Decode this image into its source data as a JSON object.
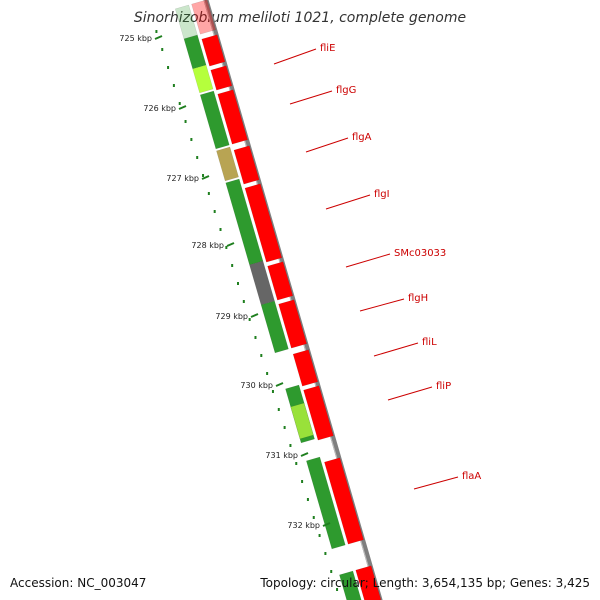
{
  "title": "Sinorhizobium meliloti 1021, complete genome",
  "footer": {
    "accession": "Accession: NC_003047",
    "topology": "Topology: circular; Length: 3,654,135 bp; Genes: 3,425"
  },
  "colors": {
    "backbone": "#7f7f7f",
    "forward_gene": "#ff0000",
    "reverse_gene": "#2e9a2e",
    "tick": "#1f7f1f",
    "label_line": "#cc0000"
  },
  "kbp_ticks": [
    "725 kbp",
    "726 kbp",
    "727 kbp",
    "728 kbp",
    "729 kbp",
    "730 kbp",
    "731 kbp",
    "732 kbp"
  ],
  "gene_labels": [
    "fliE",
    "flgG",
    "flgA",
    "flgI",
    "SMc03033",
    "flgH",
    "fliL",
    "fliP",
    "flaA"
  ]
}
